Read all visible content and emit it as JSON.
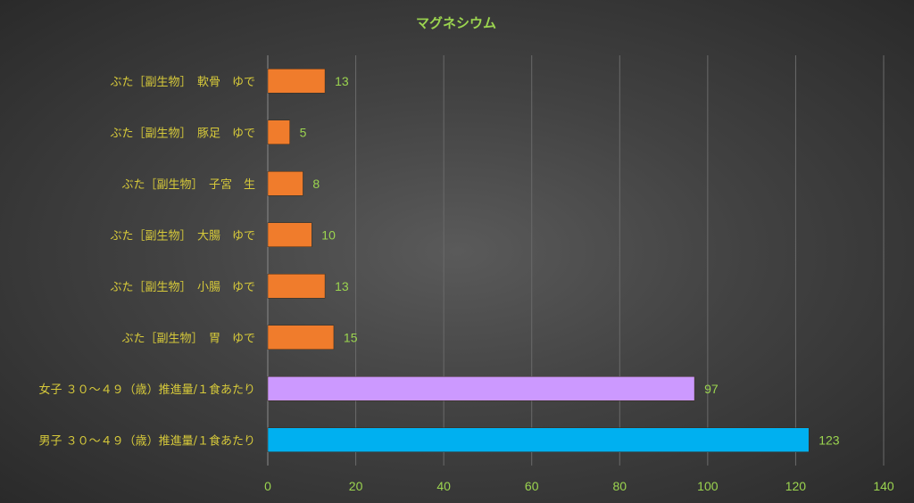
{
  "chart_data": {
    "type": "bar",
    "orientation": "horizontal",
    "title": "マグネシウム",
    "xlabel": "",
    "ylabel": "",
    "xlim": [
      0,
      140
    ],
    "x_ticks": [
      0,
      20,
      40,
      60,
      80,
      100,
      120,
      140
    ],
    "grid": true,
    "legend": "none",
    "categories": [
      "ぶた［副生物］　軟骨　ゆで",
      "ぶた［副生物］　豚足　ゆで",
      "ぶた［副生物］　子宮　生",
      "ぶた［副生物］　大腸　ゆで",
      "ぶた［副生物］　小腸　ゆで",
      "ぶた［副生物］　胃　ゆで",
      "女子 ３０～４９（歳）推進量/１食あたり",
      "男子 ３０～４９（歳）推進量/１食あたり"
    ],
    "values": [
      13,
      5,
      8,
      10,
      13,
      15,
      97,
      123
    ],
    "bar_colors": [
      "#f07c2c",
      "#f07c2c",
      "#f07c2c",
      "#f07c2c",
      "#f07c2c",
      "#f07c2c",
      "#cc99ff",
      "#00b0f0"
    ],
    "colors": {
      "title": "#9bd44f",
      "category_text": "#d6c93a",
      "tick_text": "#9bd44f",
      "data_label_text": "#9bd44f",
      "gridline": "#6a6a6a"
    }
  }
}
